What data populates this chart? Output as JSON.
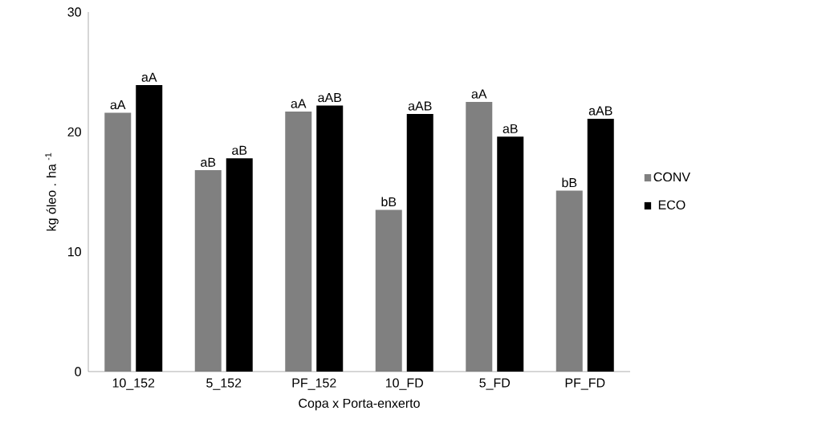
{
  "chart_data": {
    "type": "bar",
    "xlabel": "Copa x Porta-enxerto",
    "ylabel": "kg óleo . ha $^{-1}$",
    "categories": [
      "10_152",
      "5_152",
      "PF_152",
      "10_FD",
      "5_FD",
      "PF_FD"
    ],
    "series": [
      {
        "name": "CONV",
        "color": "#808080",
        "values": [
          21.6,
          16.8,
          21.7,
          13.5,
          22.5,
          15.1
        ]
      },
      {
        "name": "ECO",
        "color": "#000000",
        "values": [
          23.9,
          17.8,
          22.2,
          21.5,
          19.6,
          21.1
        ]
      }
    ],
    "ylim": [
      0,
      30
    ],
    "yticks": [
      0,
      10,
      20,
      30
    ],
    "grid": false,
    "legend": "right",
    "annotations": [
      {
        "text": "aA",
        "x": "10_152",
        "y": 21.6
      },
      {
        "text": "aA",
        "x": "10_152",
        "y": 23.9
      },
      {
        "text": "aB",
        "x": "5_152",
        "y": 16.8
      },
      {
        "text": "aB",
        "x": "5_152",
        "y": 17.8
      },
      {
        "text": "aA",
        "x": "PF_152",
        "y": 21.7
      },
      {
        "text": "aAB",
        "x": "PF_152",
        "y": 22.2
      },
      {
        "text": "bB",
        "x": "10_FD",
        "y": 13.5
      },
      {
        "text": "aAB",
        "x": "10_FD",
        "y": 21.5
      },
      {
        "text": "aA",
        "x": "5_FD",
        "y": 22.5
      },
      {
        "text": "aB",
        "x": "5_FD",
        "y": 19.6
      },
      {
        "text": "bB",
        "x": "PF_FD",
        "y": 15.1
      },
      {
        "text": "aAB",
        "x": "PF_FD",
        "y": 21.1
      }
    ]
  }
}
